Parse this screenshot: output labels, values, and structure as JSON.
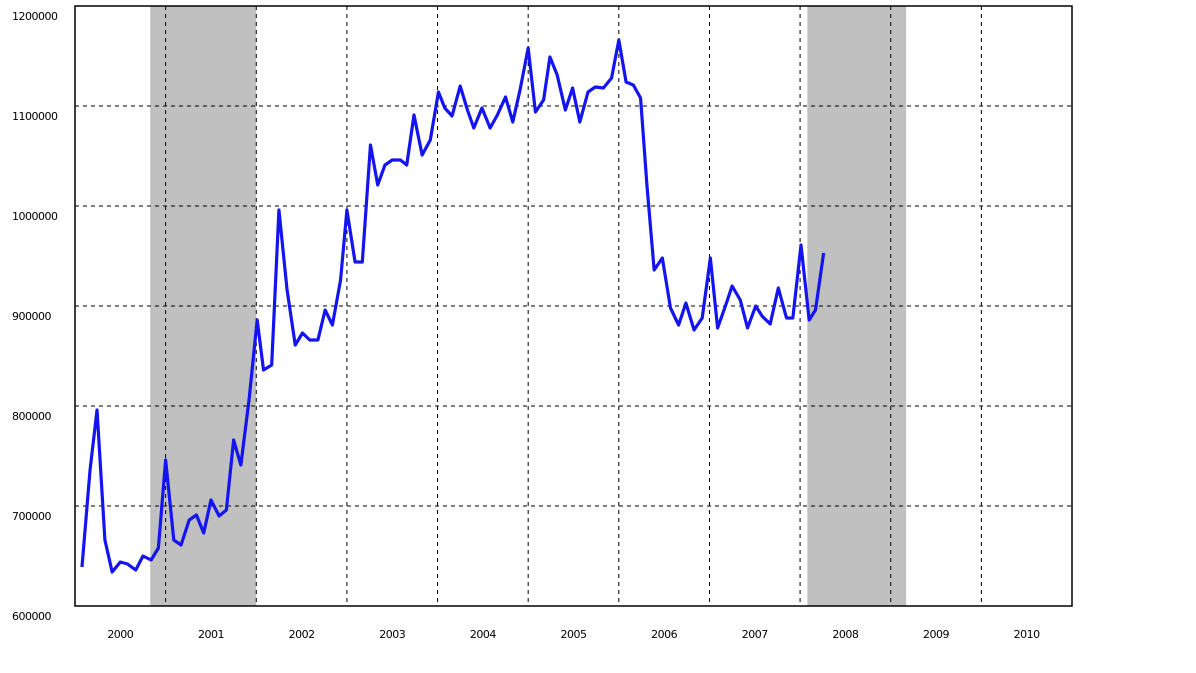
{
  "chart_data": {
    "type": "line",
    "x": [
      2000.077,
      2000.166,
      2000.243,
      2000.33,
      2000.41,
      2000.5,
      2000.58,
      2000.67,
      2000.75,
      2000.84,
      2000.92,
      2001.0,
      2001.09,
      2001.17,
      2001.26,
      2001.34,
      2001.42,
      2001.5,
      2001.59,
      2001.67,
      2001.75,
      2001.83,
      2001.92,
      2002.01,
      2002.08,
      2002.17,
      2002.25,
      2002.34,
      2002.43,
      2002.51,
      2002.59,
      2002.68,
      2002.76,
      2002.84,
      2002.93,
      2003.0,
      2003.09,
      2003.17,
      2003.26,
      2003.34,
      2003.42,
      2003.5,
      2003.59,
      2003.66,
      2003.74,
      2003.83,
      2003.92,
      2004.01,
      2004.08,
      2004.16,
      2004.25,
      2004.33,
      2004.4,
      2004.49,
      2004.58,
      2004.66,
      2004.75,
      2004.83,
      2004.91,
      2005.0,
      2005.08,
      2005.17,
      2005.24,
      2005.32,
      2005.41,
      2005.49,
      2005.57,
      2005.66,
      2005.74,
      2005.83,
      2005.92,
      2006.0,
      2006.08,
      2006.16,
      2006.24,
      2006.31,
      2006.39,
      2006.48,
      2006.57,
      2006.66,
      2006.74,
      2006.83,
      2006.92,
      2007.01,
      2007.09,
      2007.18,
      2007.25,
      2007.34,
      2007.42,
      2007.51,
      2007.58,
      2007.67,
      2007.76,
      2007.85,
      2007.92,
      2008.01,
      2008.1,
      2008.17,
      2008.26
    ],
    "series": [
      {
        "color": "#1414f0",
        "values": [
          639000,
          736000,
          796000,
          666000,
          634000,
          644000,
          642000,
          636000,
          650000,
          646000,
          658000,
          746000,
          666000,
          661000,
          686000,
          691000,
          673000,
          706000,
          690000,
          696000,
          766000,
          741000,
          806000,
          886000,
          836000,
          841000,
          996000,
          916000,
          861000,
          873000,
          866000,
          866000,
          896000,
          881000,
          926000,
          996000,
          944000,
          944000,
          1061000,
          1021000,
          1041000,
          1046000,
          1046000,
          1041000,
          1091000,
          1051000,
          1066000,
          1114000,
          1098000,
          1090000,
          1120000,
          1096000,
          1078000,
          1098000,
          1078000,
          1091000,
          1109000,
          1084000,
          1116000,
          1158000,
          1094000,
          1106000,
          1149000,
          1131000,
          1096000,
          1118000,
          1084000,
          1114000,
          1119000,
          1118000,
          1128000,
          1166000,
          1124000,
          1121000,
          1108000,
          1021000,
          936000,
          948000,
          898000,
          881000,
          903000,
          876000,
          888000,
          948000,
          878000,
          901000,
          920000,
          906000,
          878000,
          900000,
          890000,
          882000,
          918000,
          888000,
          888000,
          961000,
          886000,
          896000,
          953000
        ]
      }
    ],
    "xlim": [
      2000,
      2011
    ],
    "xticks": [
      2001,
      2002,
      2003,
      2004,
      2005,
      2006,
      2007,
      2008,
      2009,
      2010
    ],
    "xtick_labels": [
      {
        "value": 2000.5,
        "label": "2000"
      },
      {
        "value": 2001.5,
        "label": "2001"
      },
      {
        "value": 2002.5,
        "label": "2002"
      },
      {
        "value": 2003.5,
        "label": "2003"
      },
      {
        "value": 2004.5,
        "label": "2004"
      },
      {
        "value": 2005.5,
        "label": "2005"
      },
      {
        "value": 2006.5,
        "label": "2006"
      },
      {
        "value": 2007.5,
        "label": "2007"
      },
      {
        "value": 2008.5,
        "label": "2008"
      },
      {
        "value": 2009.5,
        "label": "2009"
      },
      {
        "value": 2010.5,
        "label": "2010"
      }
    ],
    "ylim": [
      600000,
      1200000
    ],
    "yticks": [
      600000,
      700000,
      800000,
      900000,
      1000000,
      1100000,
      1200000
    ],
    "grid": true,
    "shaded_regions": [
      [
        2000.83,
        2002.0
      ],
      [
        2008.08,
        2009.17
      ]
    ],
    "shade_color": "#c0c0c0"
  }
}
